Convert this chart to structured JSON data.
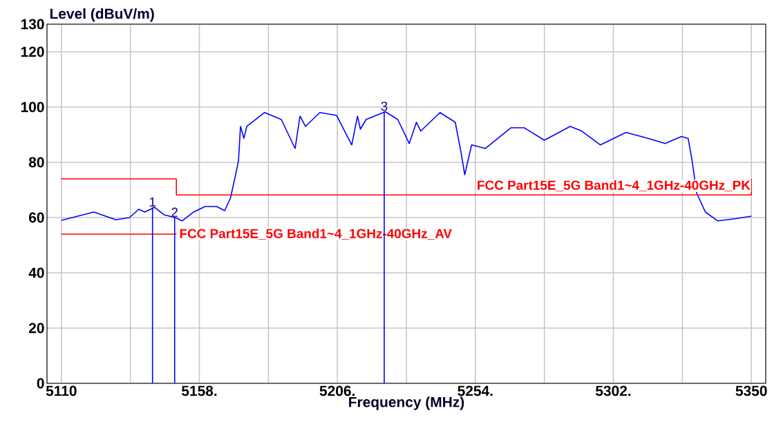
{
  "chart_data": {
    "type": "line",
    "xlabel": "Frequency (MHz)",
    "ylabel": "Level (dBuV/m)",
    "xlim": [
      5105,
      5355
    ],
    "ylim": [
      0,
      130
    ],
    "xticks": [
      5110,
      {
        "value": 5134,
        "label": null
      },
      {
        "value": 5158,
        "label": "5158."
      },
      {
        "value": 5182,
        "label": null
      },
      {
        "value": 5206,
        "label": "5206."
      },
      {
        "value": 5230,
        "label": null
      },
      {
        "value": 5254,
        "label": "5254."
      },
      {
        "value": 5278,
        "label": null
      },
      {
        "value": 5302,
        "label": "5302."
      },
      {
        "value": 5326,
        "label": null
      },
      5350
    ],
    "yticks": [
      0,
      20,
      40,
      60,
      80,
      100,
      120,
      130
    ],
    "grid": true,
    "series": [
      {
        "color": "#0000ff",
        "x": [
          5110,
          5121.3,
          5129,
          5133.7,
          5136.9,
          5139,
          5142.4,
          5145.7,
          5149.6,
          5152,
          5156,
          5160,
          5164,
          5166.8,
          5168.8,
          5170.4,
          5171.6,
          5172.3,
          5173.5,
          5174.5,
          5177.6,
          5180.7,
          5186.5,
          5191.3,
          5193,
          5194.9,
          5199.9,
          5205.7,
          5211,
          5213,
          5214,
          5216,
          5222.7,
          5227,
          5231,
          5233.5,
          5235,
          5241.7,
          5247,
          5249,
          5250.3,
          5252.7,
          5257.5,
          5266.4,
          5271,
          5278,
          5287,
          5291,
          5297.5,
          5306.4,
          5314,
          5320,
          5325.6,
          5328,
          5329.4,
          5331,
          5334,
          5338.3,
          5344.7,
          5350
        ],
        "values": [
          59,
          62,
          59.2,
          60,
          63,
          62,
          63.7,
          61,
          60,
          58.8,
          62,
          64,
          64,
          62.5,
          67,
          74.5,
          80.5,
          93,
          88.7,
          93,
          95.5,
          98,
          95.5,
          85,
          96.7,
          93,
          98,
          97,
          86.3,
          96.7,
          92,
          95.5,
          98.3,
          95.5,
          86.8,
          94.5,
          91.3,
          98,
          94.5,
          83.7,
          75.5,
          86.3,
          85,
          92.5,
          92.5,
          88,
          93,
          91.3,
          86.3,
          90.8,
          88.7,
          86.8,
          89.3,
          88.7,
          80.5,
          68.8,
          62,
          58.8,
          59.6,
          60.5
        ]
      },
      {
        "name": "FCC Part15E_5G Band1~4_1GHz-40GHz_PK",
        "color": "#ff0000",
        "x": [
          5110,
          5150,
          5150,
          5350,
          5350
        ],
        "values": [
          74,
          74,
          68.2,
          68.2,
          74
        ]
      },
      {
        "name": "FCC Part15E_5G Band1~4_1GHz-40GHz_AV",
        "color": "#ff0000",
        "x": [
          5110,
          5150
        ],
        "values": [
          54,
          54
        ]
      }
    ],
    "annotations": [
      {
        "text": "1",
        "x": 5141.7,
        "y": 63.7
      },
      {
        "text": "2",
        "x": 5149.4,
        "y": 60
      },
      {
        "text": "3",
        "x": 5222.3,
        "y": 98.3
      }
    ]
  }
}
